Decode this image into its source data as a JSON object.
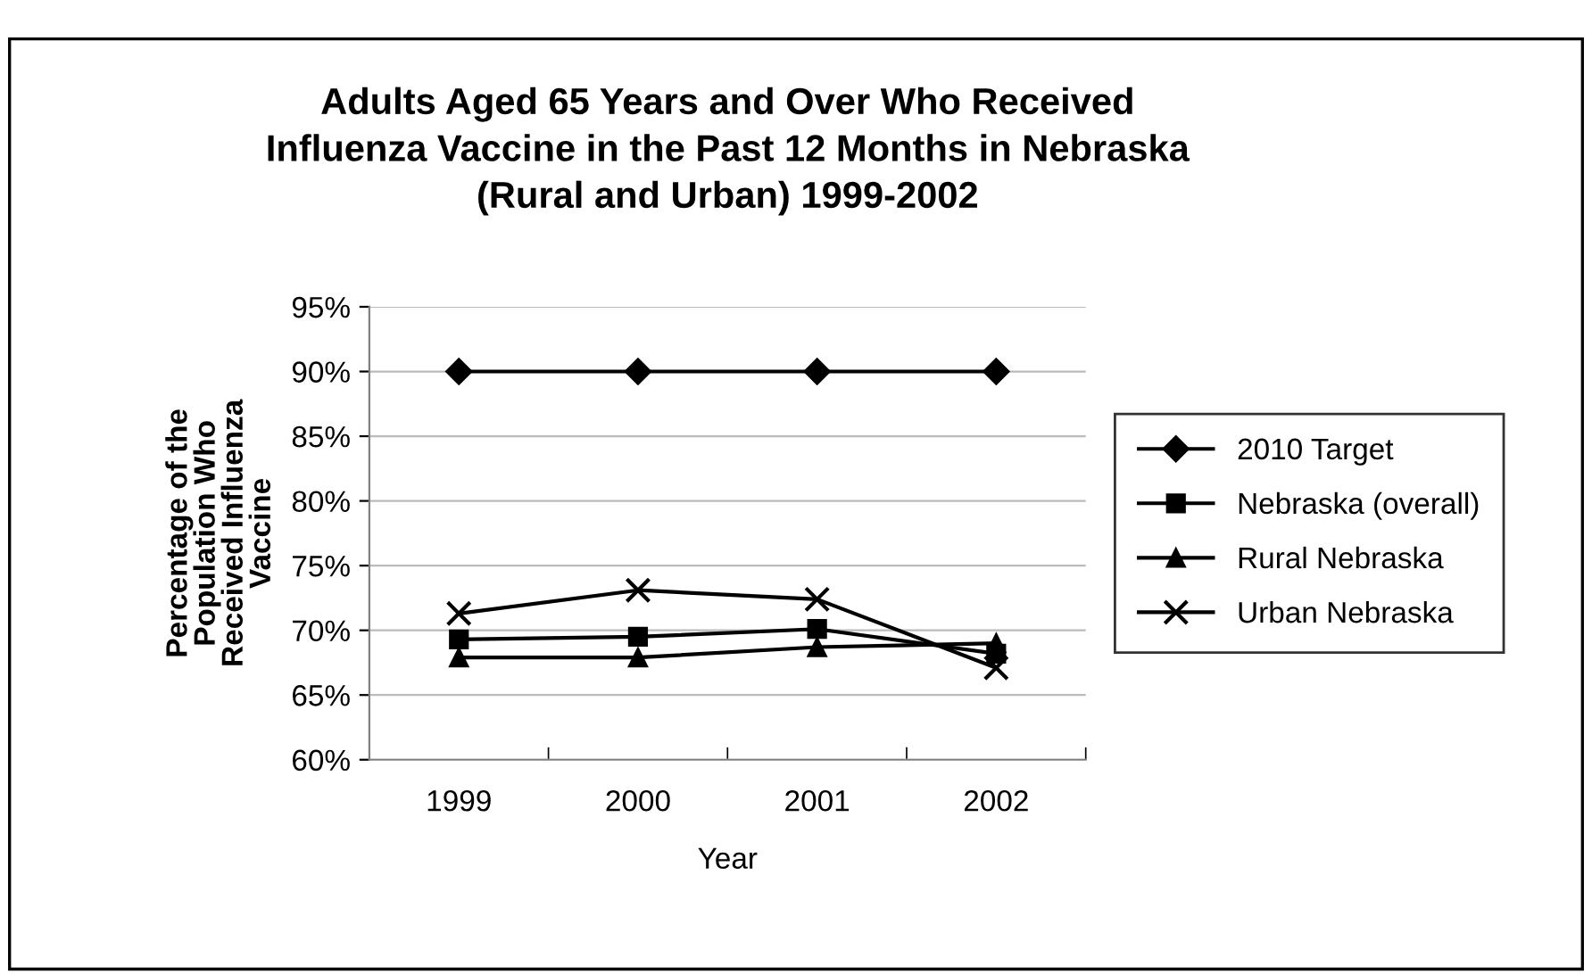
{
  "chart_data": {
    "type": "line",
    "title": "Adults Aged 65 Years and Over Who Received\nInfluenza Vaccine in the Past 12 Months in Nebraska\n(Rural and Urban) 1999-2002",
    "xlabel": "Year",
    "ylabel": "Percentage of the\nPopulation Who\nReceived Influenza\nVaccine",
    "categories": [
      "1999",
      "2000",
      "2001",
      "2002"
    ],
    "series": [
      {
        "name": "2010 Target",
        "color": "#000000",
        "marker": "diamond",
        "values": [
          90,
          90,
          90,
          90
        ]
      },
      {
        "name": "Nebraska (overall)",
        "color": "#000000",
        "marker": "square",
        "values": [
          69.3,
          69.5,
          70.1,
          68.2
        ]
      },
      {
        "name": "Rural Nebraska",
        "color": "#000000",
        "marker": "triangle",
        "values": [
          67.9,
          67.9,
          68.7,
          69.0
        ]
      },
      {
        "name": "Urban Nebraska",
        "color": "#000000",
        "marker": "cross",
        "values": [
          71.3,
          73.1,
          72.4,
          67.1
        ]
      }
    ],
    "ylim": [
      60,
      95
    ],
    "yticks": [
      {
        "value": 60,
        "label": "60%"
      },
      {
        "value": 65,
        "label": "65%"
      },
      {
        "value": 70,
        "label": "70%"
      },
      {
        "value": 75,
        "label": "75%"
      },
      {
        "value": 80,
        "label": "80%"
      },
      {
        "value": 85,
        "label": "85%"
      },
      {
        "value": 90,
        "label": "90%"
      },
      {
        "value": 95,
        "label": "95%"
      }
    ],
    "grid": "y",
    "legend": "right",
    "line_style": "solid"
  }
}
